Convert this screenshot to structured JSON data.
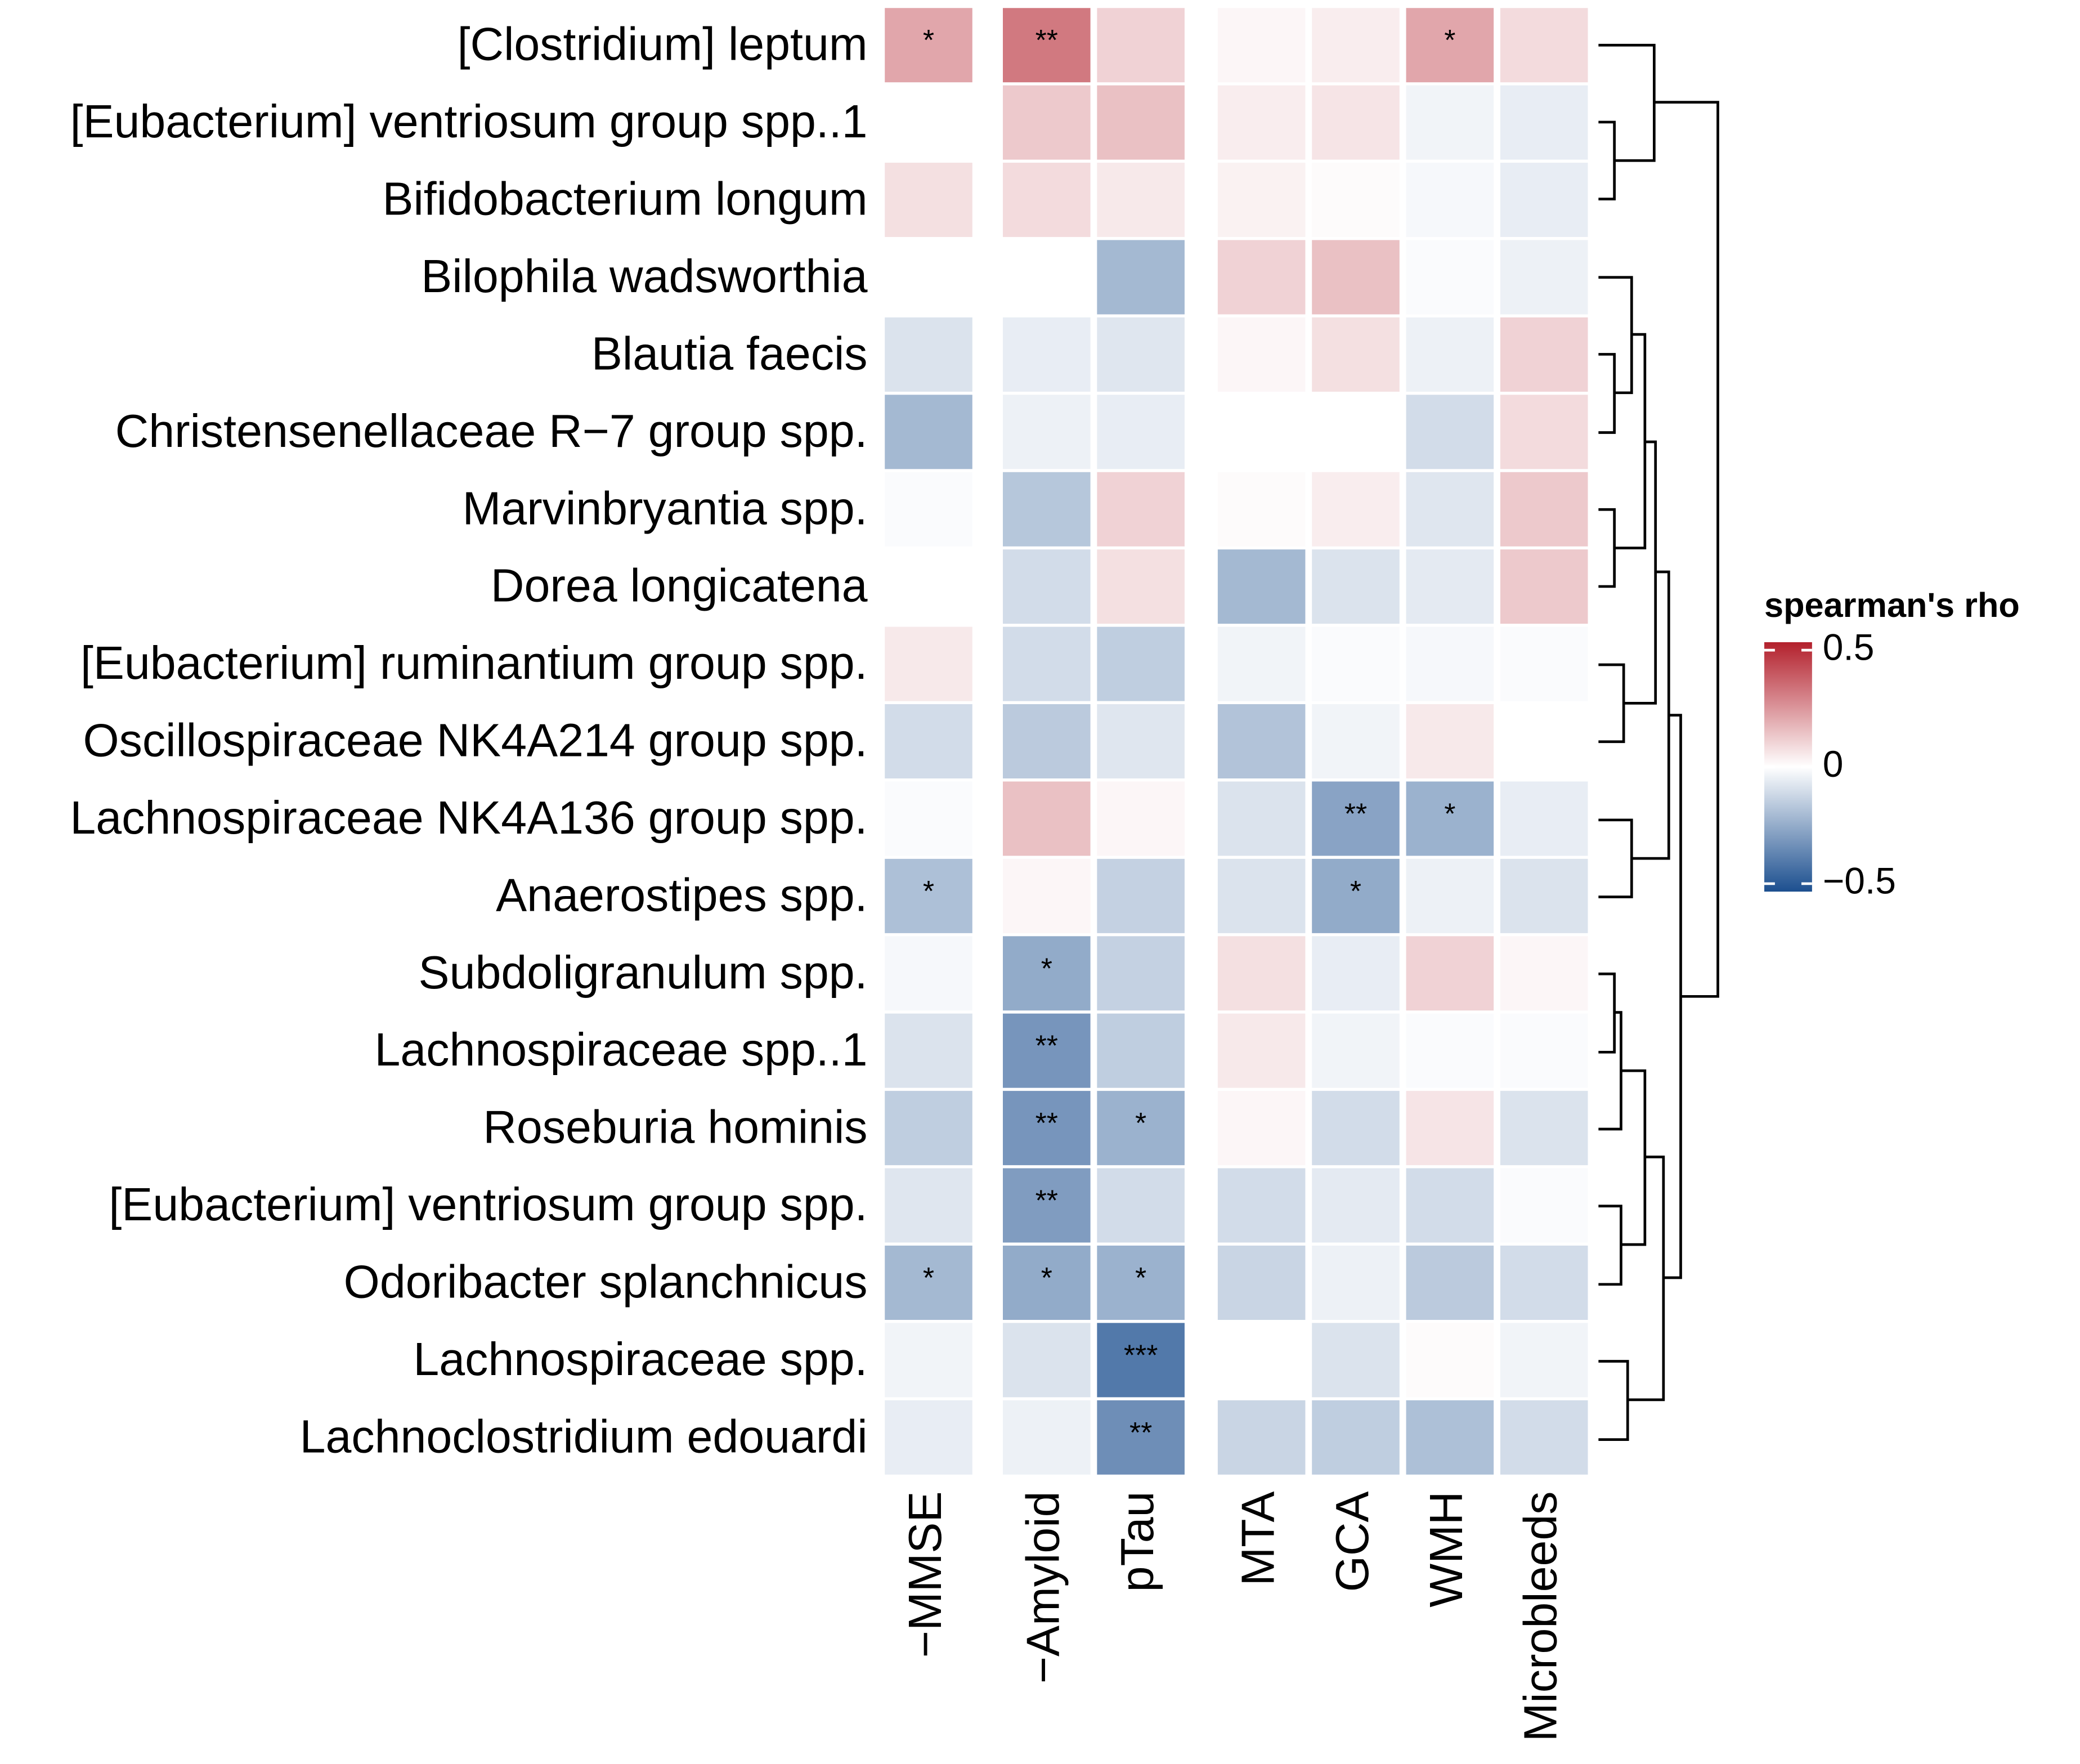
{
  "chart_data": {
    "type": "heatmap",
    "rows": [
      "[Clostridium] leptum",
      "[Eubacterium] ventriosum group spp..1",
      "Bifidobacterium longum",
      "Bilophila wadsworthia",
      "Blautia faecis",
      "Christensenellaceae R−7 group spp.",
      "Marvinbryantia spp.",
      "Dorea longicatena",
      "[Eubacterium] ruminantium group spp.",
      "Oscillospiraceae NK4A214 group spp.",
      "Lachnospiraceae NK4A136 group spp.",
      "Anaerostipes spp.",
      "Subdoligranulum spp.",
      "Lachnospiraceae spp..1",
      "Roseburia hominis",
      "[Eubacterium] ventriosum group spp.",
      "Odoribacter splanchnicus",
      "Lachnospiraceae spp.",
      "Lachnoclostridium edouardi"
    ],
    "columns": [
      "−MMSE",
      "−Amyloid",
      "pTau",
      "MTA",
      "GCA",
      "WMH",
      "Microbleeds"
    ],
    "values": [
      [
        0.2,
        0.3,
        0.1,
        0.02,
        0.04,
        0.2,
        0.08
      ],
      [
        0,
        0.12,
        0.14,
        0.04,
        0.06,
        -0.03,
        -0.05
      ],
      [
        0.07,
        0.08,
        0.05,
        0.03,
        0.01,
        -0.02,
        -0.05
      ],
      [
        0,
        0,
        -0.2,
        0.1,
        0.14,
        -0.01,
        -0.04
      ],
      [
        -0.08,
        -0.05,
        -0.07,
        0.02,
        0.07,
        -0.04,
        0.1
      ],
      [
        -0.2,
        -0.04,
        -0.05,
        0,
        0,
        -0.1,
        0.08
      ],
      [
        -0.01,
        -0.16,
        0.1,
        0.01,
        0.04,
        -0.07,
        0.12
      ],
      [
        0,
        -0.1,
        0.07,
        -0.2,
        -0.08,
        -0.06,
        0.12
      ],
      [
        0.05,
        -0.1,
        -0.14,
        -0.03,
        -0.01,
        -0.02,
        -0.01
      ],
      [
        -0.1,
        -0.15,
        -0.07,
        -0.17,
        -0.03,
        0.05,
        0
      ],
      [
        -0.01,
        0.14,
        0.02,
        -0.08,
        -0.26,
        -0.22,
        -0.05
      ],
      [
        -0.18,
        0.02,
        -0.13,
        -0.08,
        -0.24,
        -0.04,
        -0.08
      ],
      [
        -0.02,
        -0.24,
        -0.13,
        0.07,
        -0.05,
        0.1,
        0.02
      ],
      [
        -0.08,
        -0.3,
        -0.14,
        0.05,
        -0.03,
        -0.01,
        -0.01
      ],
      [
        -0.14,
        -0.3,
        -0.22,
        0.02,
        -0.1,
        0.06,
        -0.08
      ],
      [
        -0.07,
        -0.28,
        -0.1,
        -0.1,
        -0.06,
        -0.1,
        -0.01
      ],
      [
        -0.2,
        -0.24,
        -0.22,
        -0.12,
        -0.04,
        -0.15,
        -0.1
      ],
      [
        -0.03,
        -0.08,
        -0.38,
        0,
        -0.08,
        0.01,
        -0.03
      ],
      [
        -0.05,
        -0.04,
        -0.32,
        -0.12,
        -0.14,
        -0.18,
        -0.1
      ]
    ],
    "annotations": [
      [
        "*",
        "**",
        null,
        null,
        null,
        "*",
        null
      ],
      [
        null,
        null,
        null,
        null,
        null,
        null,
        null
      ],
      [
        null,
        null,
        null,
        null,
        null,
        null,
        null
      ],
      [
        null,
        null,
        null,
        null,
        null,
        null,
        null
      ],
      [
        null,
        null,
        null,
        null,
        null,
        null,
        null
      ],
      [
        null,
        null,
        null,
        null,
        null,
        null,
        null
      ],
      [
        null,
        null,
        null,
        null,
        null,
        null,
        null
      ],
      [
        null,
        null,
        null,
        null,
        null,
        null,
        null
      ],
      [
        null,
        null,
        null,
        null,
        null,
        null,
        null
      ],
      [
        null,
        null,
        null,
        null,
        null,
        null,
        null
      ],
      [
        null,
        null,
        null,
        null,
        "**",
        "*",
        null
      ],
      [
        "*",
        null,
        null,
        null,
        "*",
        null,
        null
      ],
      [
        null,
        "*",
        null,
        null,
        null,
        null,
        null
      ],
      [
        null,
        "**",
        null,
        null,
        null,
        null,
        null
      ],
      [
        null,
        "**",
        "*",
        null,
        null,
        null,
        null
      ],
      [
        null,
        "**",
        null,
        null,
        null,
        null,
        null
      ],
      [
        "*",
        "*",
        "*",
        null,
        null,
        null,
        null
      ],
      [
        null,
        null,
        "***",
        null,
        null,
        null,
        null
      ],
      [
        null,
        null,
        "**",
        null,
        null,
        null,
        null
      ]
    ],
    "legend_title": "spearman's rho",
    "colorscale": [
      "#1c4f8f",
      "#ffffff",
      "#b3202c"
    ],
    "clim": [
      -0.5,
      0.5
    ],
    "cticks": [
      {
        "value": 0.5,
        "label": "0.5"
      },
      0,
      {
        "value": -0.5,
        "label": "−0.5"
      }
    ]
  }
}
